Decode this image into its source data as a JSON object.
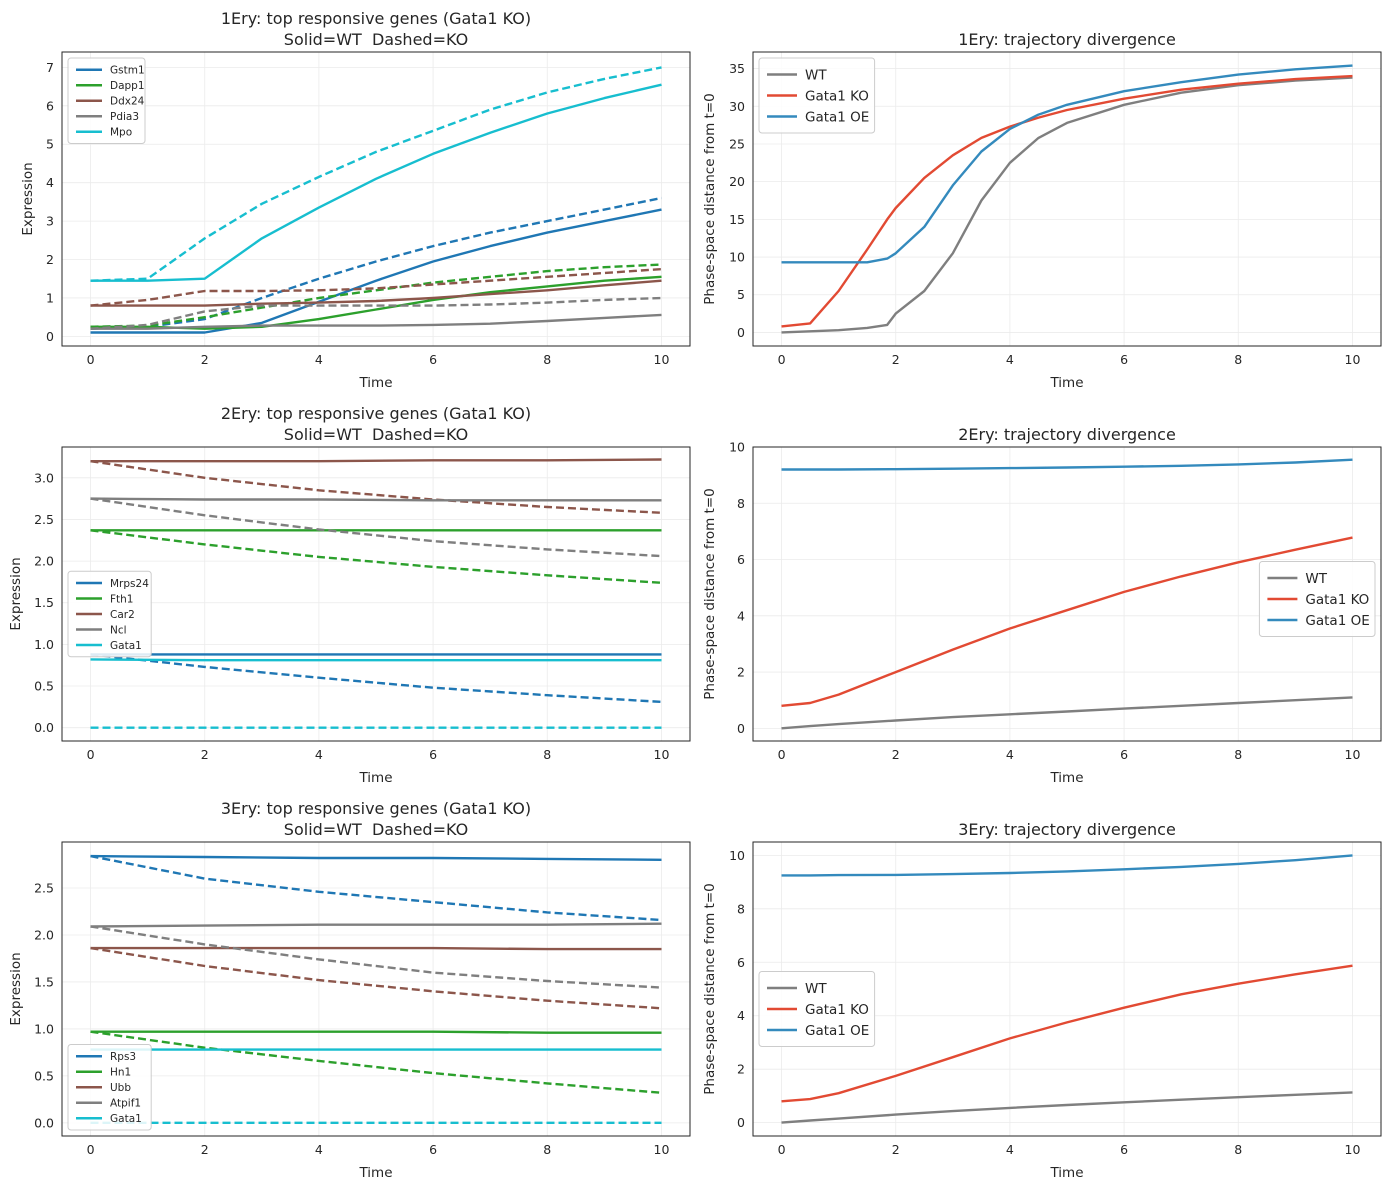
{
  "chart_data": [
    {
      "type": "line",
      "title": "1Ery: top responsive genes (Gata1 KO)",
      "subtitle": "Solid=WT  Dashed=KO",
      "xlabel": "Time",
      "ylabel": "Expression",
      "xlim": [
        -0.5,
        10.5
      ],
      "ylim": [
        -0.25,
        7.4
      ],
      "xticks": [
        0,
        2,
        4,
        6,
        8,
        10
      ],
      "yticks": [
        0,
        1,
        2,
        3,
        4,
        5,
        6,
        7
      ],
      "tick_labels_y": [
        "0",
        "1",
        "2",
        "3",
        "4",
        "5",
        "6",
        "7"
      ],
      "grid": true,
      "legend": "upper left",
      "legend_font": "small",
      "x": [
        0,
        1,
        2,
        3,
        4,
        5,
        6,
        7,
        8,
        9,
        10
      ],
      "series": [
        {
          "name": "Gstm1",
          "color": "#1f77b4",
          "style": "solid",
          "values": [
            0.1,
            0.1,
            0.1,
            0.35,
            0.9,
            1.45,
            1.95,
            2.35,
            2.7,
            3.0,
            3.3
          ]
        },
        {
          "name": "",
          "color": "#1f77b4",
          "style": "dashed",
          "values": [
            0.2,
            0.25,
            0.45,
            1.0,
            1.5,
            1.95,
            2.35,
            2.7,
            3.0,
            3.3,
            3.6
          ]
        },
        {
          "name": "Dapp1",
          "color": "#2ca02c",
          "style": "solid",
          "values": [
            0.25,
            0.25,
            0.2,
            0.25,
            0.45,
            0.7,
            0.95,
            1.15,
            1.3,
            1.45,
            1.55
          ]
        },
        {
          "name": "",
          "color": "#2ca02c",
          "style": "dashed",
          "values": [
            0.25,
            0.28,
            0.5,
            0.75,
            1.0,
            1.2,
            1.4,
            1.55,
            1.7,
            1.8,
            1.87
          ]
        },
        {
          "name": "Ddx24",
          "color": "#8c564b",
          "style": "solid",
          "values": [
            0.8,
            0.8,
            0.8,
            0.85,
            0.88,
            0.92,
            1.0,
            1.1,
            1.2,
            1.33,
            1.45
          ]
        },
        {
          "name": "",
          "color": "#8c564b",
          "style": "dashed",
          "values": [
            0.8,
            0.95,
            1.18,
            1.18,
            1.2,
            1.25,
            1.35,
            1.45,
            1.55,
            1.65,
            1.75
          ]
        },
        {
          "name": "Pdia3",
          "color": "#7f7f7f",
          "style": "solid",
          "values": [
            0.2,
            0.2,
            0.25,
            0.28,
            0.28,
            0.28,
            0.3,
            0.33,
            0.4,
            0.48,
            0.56
          ]
        },
        {
          "name": "",
          "color": "#7f7f7f",
          "style": "dashed",
          "values": [
            0.2,
            0.3,
            0.65,
            0.8,
            0.8,
            0.8,
            0.8,
            0.83,
            0.88,
            0.95,
            1.0
          ]
        },
        {
          "name": "Mpo",
          "color": "#17becf",
          "style": "solid",
          "values": [
            1.45,
            1.45,
            1.5,
            2.55,
            3.35,
            4.1,
            4.75,
            5.3,
            5.8,
            6.2,
            6.55
          ]
        },
        {
          "name": "",
          "color": "#17becf",
          "style": "dashed",
          "values": [
            1.45,
            1.5,
            2.55,
            3.45,
            4.15,
            4.8,
            5.35,
            5.9,
            6.35,
            6.7,
            7.0
          ]
        }
      ]
    },
    {
      "type": "line",
      "title": "1Ery: trajectory divergence",
      "subtitle": "",
      "xlabel": "Time",
      "ylabel": "Phase-space distance from t=0",
      "xlim": [
        -0.5,
        10.5
      ],
      "ylim": [
        -1.8,
        37.2
      ],
      "xticks": [
        0,
        2,
        4,
        6,
        8,
        10
      ],
      "yticks": [
        0,
        5,
        10,
        15,
        20,
        25,
        30,
        35
      ],
      "tick_labels_y": [
        "0",
        "5",
        "10",
        "15",
        "20",
        "25",
        "30",
        "35"
      ],
      "grid": true,
      "legend": "upper left",
      "legend_font": "normal",
      "x": [
        0,
        0.5,
        1,
        1.5,
        1.85,
        2,
        2.5,
        3,
        3.5,
        4,
        4.5,
        5,
        6,
        7,
        8,
        9,
        10
      ],
      "series": [
        {
          "name": "WT",
          "color": "#7f7f7f",
          "style": "solid",
          "values": [
            0,
            0.15,
            0.3,
            0.6,
            1.0,
            2.5,
            5.5,
            10.5,
            17.5,
            22.5,
            25.8,
            27.8,
            30.2,
            31.8,
            32.8,
            33.4,
            33.8
          ]
        },
        {
          "name": "Gata1 KO",
          "color": "#e24a33",
          "style": "solid",
          "values": [
            0.8,
            1.2,
            5.5,
            11.0,
            15.0,
            16.5,
            20.5,
            23.5,
            25.8,
            27.3,
            28.5,
            29.5,
            31.0,
            32.2,
            33.0,
            33.6,
            34.0
          ]
        },
        {
          "name": "Gata1 OE",
          "color": "#348abd",
          "style": "solid",
          "values": [
            9.3,
            9.3,
            9.3,
            9.3,
            9.8,
            10.5,
            14.0,
            19.5,
            24.0,
            27.0,
            28.9,
            30.2,
            32.0,
            33.2,
            34.2,
            34.9,
            35.4
          ]
        }
      ]
    },
    {
      "type": "line",
      "title": "2Ery: top responsive genes (Gata1 KO)",
      "subtitle": "Solid=WT  Dashed=KO",
      "xlabel": "Time",
      "ylabel": "Expression",
      "xlim": [
        -0.5,
        10.5
      ],
      "ylim": [
        -0.16,
        3.37
      ],
      "xticks": [
        0,
        2,
        4,
        6,
        8,
        10
      ],
      "yticks": [
        0,
        0.5,
        1,
        1.5,
        2,
        2.5,
        3
      ],
      "tick_labels_y": [
        "0.0",
        "0.5",
        "1.0",
        "1.5",
        "2.0",
        "2.5",
        "3.0"
      ],
      "grid": true,
      "legend": "center left",
      "legend_font": "small",
      "x": [
        0,
        2,
        4,
        6,
        8,
        10
      ],
      "series": [
        {
          "name": "Mrps24",
          "color": "#1f77b4",
          "style": "solid",
          "values": [
            0.88,
            0.88,
            0.88,
            0.88,
            0.88,
            0.88
          ]
        },
        {
          "name": "",
          "color": "#1f77b4",
          "style": "dashed",
          "values": [
            0.88,
            0.73,
            0.6,
            0.48,
            0.39,
            0.31
          ]
        },
        {
          "name": "Fth1",
          "color": "#2ca02c",
          "style": "solid",
          "values": [
            2.37,
            2.37,
            2.37,
            2.37,
            2.37,
            2.37
          ]
        },
        {
          "name": "",
          "color": "#2ca02c",
          "style": "dashed",
          "values": [
            2.37,
            2.2,
            2.05,
            1.93,
            1.83,
            1.74
          ]
        },
        {
          "name": "Car2",
          "color": "#8c564b",
          "style": "solid",
          "values": [
            3.2,
            3.2,
            3.2,
            3.21,
            3.21,
            3.22
          ]
        },
        {
          "name": "",
          "color": "#8c564b",
          "style": "dashed",
          "values": [
            3.2,
            3.0,
            2.85,
            2.74,
            2.65,
            2.58
          ]
        },
        {
          "name": "Ncl",
          "color": "#7f7f7f",
          "style": "solid",
          "values": [
            2.75,
            2.74,
            2.74,
            2.73,
            2.73,
            2.73
          ]
        },
        {
          "name": "",
          "color": "#7f7f7f",
          "style": "dashed",
          "values": [
            2.75,
            2.55,
            2.38,
            2.24,
            2.14,
            2.06
          ]
        },
        {
          "name": "Gata1",
          "color": "#17becf",
          "style": "solid",
          "values": [
            0.82,
            0.81,
            0.81,
            0.81,
            0.81,
            0.81
          ]
        },
        {
          "name": "",
          "color": "#17becf",
          "style": "dashed",
          "values": [
            0.0,
            0.0,
            0.0,
            0.0,
            0.0,
            0.0
          ]
        }
      ]
    },
    {
      "type": "line",
      "title": "2Ery: trajectory divergence",
      "subtitle": "",
      "xlabel": "Time",
      "ylabel": "Phase-space distance from t=0",
      "xlim": [
        -0.5,
        10.5
      ],
      "ylim": [
        -0.45,
        10.0
      ],
      "xticks": [
        0,
        2,
        4,
        6,
        8,
        10
      ],
      "yticks": [
        0,
        2,
        4,
        6,
        8,
        10
      ],
      "tick_labels_y": [
        "0",
        "2",
        "4",
        "6",
        "8",
        "10"
      ],
      "grid": true,
      "legend": "center right",
      "legend_font": "normal",
      "x": [
        0,
        0.5,
        1,
        2,
        3,
        4,
        5,
        6,
        7,
        8,
        9,
        10
      ],
      "series": [
        {
          "name": "WT",
          "color": "#7f7f7f",
          "style": "solid",
          "values": [
            0,
            0.08,
            0.15,
            0.28,
            0.4,
            0.5,
            0.6,
            0.7,
            0.8,
            0.9,
            1.0,
            1.1
          ]
        },
        {
          "name": "Gata1 KO",
          "color": "#e24a33",
          "style": "solid",
          "values": [
            0.8,
            0.9,
            1.2,
            2.0,
            2.8,
            3.55,
            4.2,
            4.85,
            5.4,
            5.9,
            6.35,
            6.78
          ]
        },
        {
          "name": "Gata1 OE",
          "color": "#348abd",
          "style": "solid",
          "values": [
            9.2,
            9.2,
            9.2,
            9.21,
            9.23,
            9.25,
            9.27,
            9.3,
            9.33,
            9.38,
            9.45,
            9.55
          ]
        }
      ]
    },
    {
      "type": "line",
      "title": "3Ery: top responsive genes (Gata1 KO)",
      "subtitle": "Solid=WT  Dashed=KO",
      "xlabel": "Time",
      "ylabel": "Expression",
      "xlim": [
        -0.5,
        10.5
      ],
      "ylim": [
        -0.14,
        2.99
      ],
      "xticks": [
        0,
        2,
        4,
        6,
        8,
        10
      ],
      "yticks": [
        0,
        0.5,
        1,
        1.5,
        2,
        2.5
      ],
      "tick_labels_y": [
        "0.0",
        "0.5",
        "1.0",
        "1.5",
        "2.0",
        "2.5"
      ],
      "grid": true,
      "legend": "lower left",
      "legend_font": "small",
      "x": [
        0,
        2,
        4,
        6,
        8,
        10
      ],
      "series": [
        {
          "name": "Rps3",
          "color": "#1f77b4",
          "style": "solid",
          "values": [
            2.84,
            2.83,
            2.82,
            2.82,
            2.81,
            2.8
          ]
        },
        {
          "name": "",
          "color": "#1f77b4",
          "style": "dashed",
          "values": [
            2.84,
            2.6,
            2.46,
            2.35,
            2.24,
            2.16
          ]
        },
        {
          "name": "Hn1",
          "color": "#2ca02c",
          "style": "solid",
          "values": [
            0.97,
            0.97,
            0.97,
            0.97,
            0.96,
            0.96
          ]
        },
        {
          "name": "",
          "color": "#2ca02c",
          "style": "dashed",
          "values": [
            0.97,
            0.8,
            0.66,
            0.53,
            0.42,
            0.32
          ]
        },
        {
          "name": "Ubb",
          "color": "#8c564b",
          "style": "solid",
          "values": [
            1.86,
            1.86,
            1.86,
            1.86,
            1.85,
            1.85
          ]
        },
        {
          "name": "",
          "color": "#8c564b",
          "style": "dashed",
          "values": [
            1.86,
            1.67,
            1.52,
            1.4,
            1.3,
            1.22
          ]
        },
        {
          "name": "Atpif1",
          "color": "#7f7f7f",
          "style": "solid",
          "values": [
            2.09,
            2.1,
            2.11,
            2.11,
            2.11,
            2.12
          ]
        },
        {
          "name": "",
          "color": "#7f7f7f",
          "style": "dashed",
          "values": [
            2.09,
            1.9,
            1.74,
            1.6,
            1.51,
            1.44
          ]
        },
        {
          "name": "Gata1",
          "color": "#17becf",
          "style": "solid",
          "values": [
            0.78,
            0.78,
            0.78,
            0.78,
            0.78,
            0.78
          ]
        },
        {
          "name": "",
          "color": "#17becf",
          "style": "dashed",
          "values": [
            0.0,
            0.0,
            0.0,
            0.0,
            0.0,
            0.0
          ]
        }
      ]
    },
    {
      "type": "line",
      "title": "3Ery: trajectory divergence",
      "subtitle": "",
      "xlabel": "Time",
      "ylabel": "Phase-space distance from t=0",
      "xlim": [
        -0.5,
        10.5
      ],
      "ylim": [
        -0.5,
        10.5
      ],
      "xticks": [
        0,
        2,
        4,
        6,
        8,
        10
      ],
      "yticks": [
        0,
        2,
        4,
        6,
        8,
        10
      ],
      "tick_labels_y": [
        "0",
        "2",
        "4",
        "6",
        "8",
        "10"
      ],
      "grid": true,
      "legend": "center left",
      "legend_font": "normal",
      "x": [
        0,
        0.5,
        1,
        2,
        3,
        4,
        5,
        6,
        7,
        8,
        9,
        10
      ],
      "series": [
        {
          "name": "WT",
          "color": "#7f7f7f",
          "style": "solid",
          "values": [
            0,
            0.08,
            0.15,
            0.3,
            0.43,
            0.55,
            0.66,
            0.76,
            0.86,
            0.95,
            1.04,
            1.13
          ]
        },
        {
          "name": "Gata1 KO",
          "color": "#e24a33",
          "style": "solid",
          "values": [
            0.8,
            0.88,
            1.1,
            1.75,
            2.45,
            3.15,
            3.75,
            4.3,
            4.8,
            5.2,
            5.55,
            5.87
          ]
        },
        {
          "name": "Gata1 OE",
          "color": "#348abd",
          "style": "solid",
          "values": [
            9.25,
            9.25,
            9.26,
            9.27,
            9.3,
            9.34,
            9.4,
            9.48,
            9.57,
            9.68,
            9.82,
            10.0
          ]
        }
      ]
    }
  ]
}
